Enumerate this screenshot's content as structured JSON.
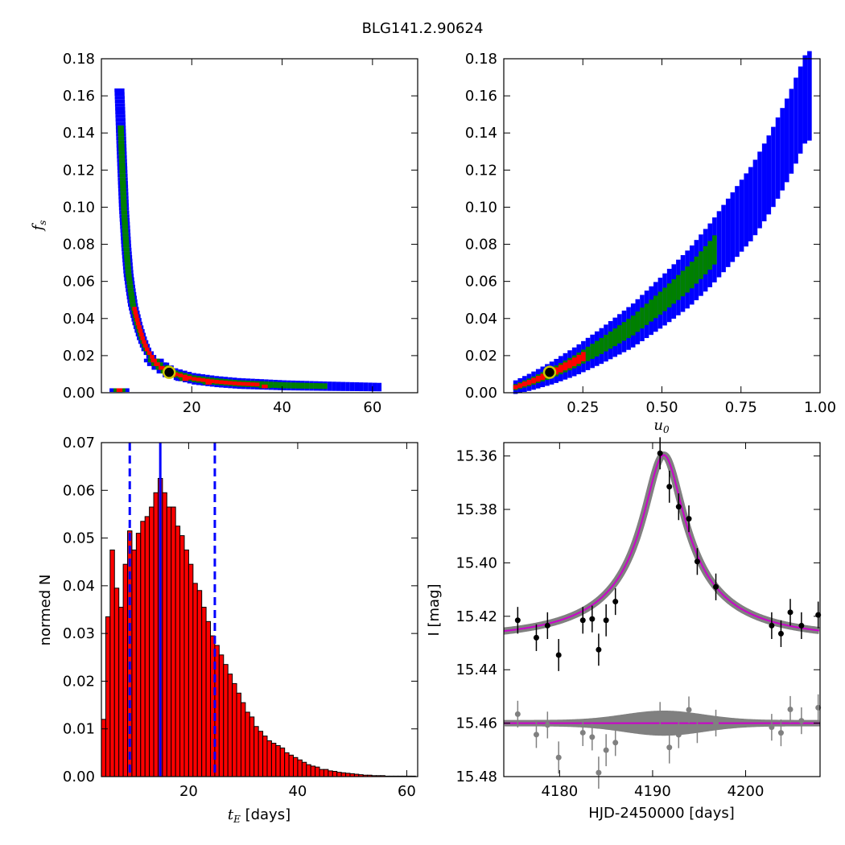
{
  "figure_title": "BLG141.2.90624",
  "colors": {
    "level_outer": "#0000ff",
    "level_mid": "#008000",
    "level_inner": "#ff0000",
    "best_marker_fill": "#000000",
    "best_marker_ring": "#c8c800",
    "hist_bar": "#ff0000",
    "hist_edge": "#000000",
    "median_line": "#0000ff",
    "model_line": "#cc00cc",
    "model_band": "#808080",
    "data_point": "#000000",
    "residual_point": "#808080"
  },
  "chart_data": [
    {
      "id": "fs_vs_tE",
      "type": "heatmap",
      "title": "",
      "xlabel": "",
      "ylabel": "f_s",
      "xlim": [
        0,
        70
      ],
      "ylim": [
        0,
        0.18
      ],
      "xticks": [
        "20",
        "40",
        "60"
      ],
      "yticks": [
        "0.00",
        "0.02",
        "0.04",
        "0.06",
        "0.08",
        "0.10",
        "0.12",
        "0.14",
        "0.16",
        "0.18"
      ],
      "contour_levels": [
        "outer (blue)",
        "middle (green)",
        "inner (red)"
      ],
      "ridge": [
        [
          4.0,
          0.164
        ],
        [
          4.5,
          0.13
        ],
        [
          5.0,
          0.1
        ],
        [
          5.5,
          0.08
        ],
        [
          6.0,
          0.065
        ],
        [
          6.5,
          0.056
        ],
        [
          7.0,
          0.048
        ],
        [
          8.0,
          0.038
        ],
        [
          9.0,
          0.03
        ],
        [
          10.0,
          0.024
        ],
        [
          12.0,
          0.017
        ],
        [
          14.0,
          0.013
        ],
        [
          16.0,
          0.01
        ],
        [
          20.0,
          0.0075
        ],
        [
          25.0,
          0.006
        ],
        [
          30.0,
          0.005
        ],
        [
          40.0,
          0.004
        ],
        [
          50.0,
          0.0035
        ],
        [
          62.0,
          0.003
        ]
      ],
      "best_fit": {
        "x": 15.0,
        "y": 0.011
      }
    },
    {
      "id": "fs_vs_u0",
      "type": "heatmap",
      "title": "",
      "xlabel": "u_0",
      "ylabel": "",
      "xlim": [
        0,
        1.0
      ],
      "ylim": [
        0,
        0.18
      ],
      "xticks": [
        "0.25",
        "0.50",
        "0.75",
        "1.00"
      ],
      "yticks": [
        "0.00",
        "0.02",
        "0.04",
        "0.06",
        "0.08",
        "0.10",
        "0.12",
        "0.14",
        "0.16",
        "0.18"
      ],
      "contour_levels": [
        "outer (blue)",
        "middle (green)",
        "inner (red)"
      ],
      "ridge": [
        [
          0.03,
          0.003
        ],
        [
          0.08,
          0.006
        ],
        [
          0.15,
          0.011
        ],
        [
          0.22,
          0.017
        ],
        [
          0.3,
          0.025
        ],
        [
          0.4,
          0.036
        ],
        [
          0.5,
          0.05
        ],
        [
          0.58,
          0.062
        ],
        [
          0.65,
          0.075
        ],
        [
          0.72,
          0.09
        ],
        [
          0.78,
          0.103
        ],
        [
          0.84,
          0.12
        ],
        [
          0.9,
          0.14
        ],
        [
          0.95,
          0.16
        ]
      ],
      "best_fit": {
        "x": 0.145,
        "y": 0.011
      }
    },
    {
      "id": "tE_histogram",
      "type": "bar",
      "title": "",
      "xlabel": "t_E  [days]",
      "ylabel": "normed N",
      "xlim": [
        4,
        62
      ],
      "ylim": [
        0,
        0.07
      ],
      "xticks": [
        "20",
        "40",
        "60"
      ],
      "yticks": [
        "0.00",
        "0.01",
        "0.02",
        "0.03",
        "0.04",
        "0.05",
        "0.06",
        "0.07"
      ],
      "bin_width": 0.8,
      "bin_start": 4.0,
      "values": [
        0.012,
        0.0335,
        0.0475,
        0.0395,
        0.0355,
        0.0445,
        0.0515,
        0.0475,
        0.051,
        0.0535,
        0.0545,
        0.0565,
        0.0595,
        0.0625,
        0.0595,
        0.0565,
        0.0565,
        0.0525,
        0.0505,
        0.0475,
        0.0445,
        0.0405,
        0.039,
        0.0355,
        0.0325,
        0.0295,
        0.0275,
        0.0255,
        0.0235,
        0.0215,
        0.0195,
        0.0175,
        0.0155,
        0.0135,
        0.0125,
        0.0105,
        0.0095,
        0.0085,
        0.0075,
        0.007,
        0.0065,
        0.006,
        0.005,
        0.0045,
        0.004,
        0.0035,
        0.003,
        0.0025,
        0.0022,
        0.002,
        0.0015,
        0.0015,
        0.0012,
        0.0011,
        0.0009,
        0.0008,
        0.0007,
        0.0006,
        0.0005,
        0.0004,
        0.0003,
        0.0003,
        0.0002,
        0.0002,
        0.0002,
        0.0001,
        0.0001,
        0.0001,
        0.0001,
        0.0001,
        0.0001,
        0.0001
      ],
      "median": 14.8,
      "interval": [
        9.2,
        24.8
      ]
    },
    {
      "id": "light_curve",
      "type": "line",
      "title": "",
      "xlabel": "HJD-2450000 [days]",
      "ylabel": "I [mag]",
      "xlim": [
        4174,
        4208
      ],
      "ylim": [
        15.48,
        15.355
      ],
      "xticks": [
        "4180",
        "4190",
        "4200"
      ],
      "yticks": [
        "15.36",
        "15.38",
        "15.40",
        "15.42",
        "15.44",
        "15.46",
        "15.48"
      ],
      "model": {
        "t0": 4191.2,
        "tE": 15.0,
        "u0": 0.145,
        "fs": 0.011,
        "baseline": 15.4285
      },
      "residual_baseline": 15.46,
      "points": [
        {
          "t": 4175.5,
          "mag": 15.4215,
          "err": 0.005
        },
        {
          "t": 4177.5,
          "mag": 15.428,
          "err": 0.005
        },
        {
          "t": 4178.7,
          "mag": 15.4235,
          "err": 0.005
        },
        {
          "t": 4179.9,
          "mag": 15.4345,
          "err": 0.006
        },
        {
          "t": 4182.5,
          "mag": 15.4215,
          "err": 0.005
        },
        {
          "t": 4183.5,
          "mag": 15.421,
          "err": 0.005
        },
        {
          "t": 4184.2,
          "mag": 15.4325,
          "err": 0.006
        },
        {
          "t": 4185.0,
          "mag": 15.4215,
          "err": 0.006
        },
        {
          "t": 4186.0,
          "mag": 15.4145,
          "err": 0.005
        },
        {
          "t": 4190.8,
          "mag": 15.359,
          "err": 0.006
        },
        {
          "t": 4191.8,
          "mag": 15.3715,
          "err": 0.006
        },
        {
          "t": 4192.8,
          "mag": 15.379,
          "err": 0.005
        },
        {
          "t": 4193.9,
          "mag": 15.3835,
          "err": 0.005
        },
        {
          "t": 4194.8,
          "mag": 15.3995,
          "err": 0.005
        },
        {
          "t": 4196.8,
          "mag": 15.409,
          "err": 0.005
        },
        {
          "t": 4202.8,
          "mag": 15.4235,
          "err": 0.005
        },
        {
          "t": 4203.8,
          "mag": 15.4265,
          "err": 0.005
        },
        {
          "t": 4204.8,
          "mag": 15.4185,
          "err": 0.005
        },
        {
          "t": 4206.0,
          "mag": 15.4235,
          "err": 0.005
        },
        {
          "t": 4207.8,
          "mag": 15.4195,
          "err": 0.005
        }
      ]
    }
  ]
}
